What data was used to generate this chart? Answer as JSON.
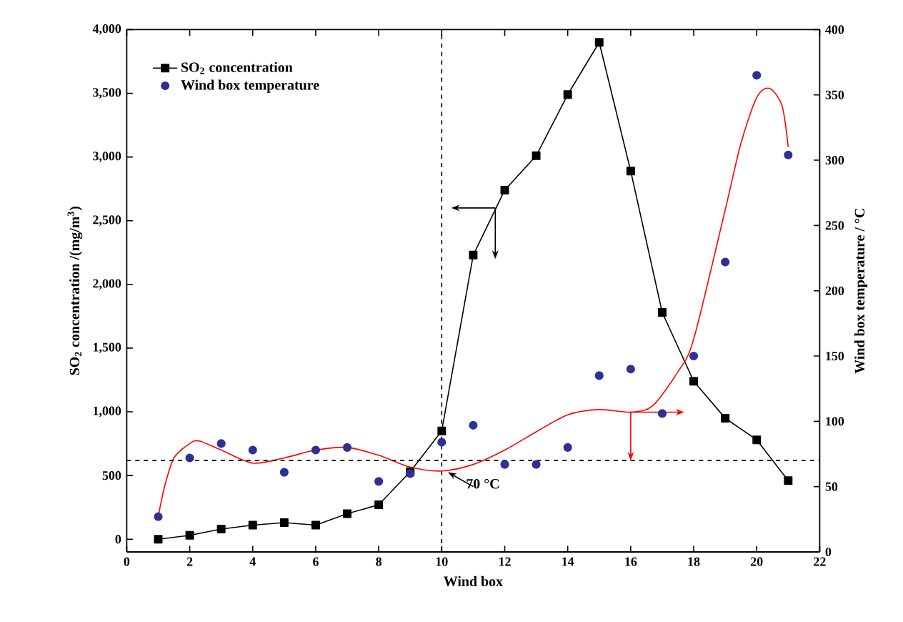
{
  "chart_data": {
    "type": "line",
    "xlabel": "Wind box",
    "ylabel": "SO$_{2}$ concentration /(mg/m$^{3}$)",
    "y2label": "Wind box temperature / °C",
    "xlim": [
      0,
      22
    ],
    "xticks": [
      0,
      2,
      4,
      6,
      8,
      10,
      12,
      14,
      16,
      18,
      20,
      22
    ],
    "ylim": [
      -100,
      4000
    ],
    "yticks": [
      0,
      500,
      {
        "value": 1000,
        "label": "1,000"
      },
      {
        "value": 1500,
        "label": "1,500"
      },
      {
        "value": 2000,
        "label": "2,000"
      },
      {
        "value": 2500,
        "label": "2,500"
      },
      {
        "value": 3000,
        "label": "3,000"
      },
      {
        "value": 3500,
        "label": "3,500"
      },
      {
        "value": 4000,
        "label": "4,000"
      }
    ],
    "y2lim": [
      0,
      400
    ],
    "y2ticks": [
      0,
      50,
      100,
      150,
      200,
      250,
      300,
      350,
      400
    ],
    "legend": "top left",
    "grid": false,
    "series": [
      {
        "name": "SO$_{2}$ concentration",
        "marker": "square",
        "color": "#000000",
        "x": [
          1,
          2,
          3,
          4,
          5,
          6,
          7,
          8,
          9,
          10,
          11,
          12,
          13,
          14,
          15,
          16,
          17,
          18,
          19,
          20,
          21
        ],
        "values": [
          0,
          30,
          80,
          110,
          130,
          110,
          200,
          270,
          530,
          850,
          2230,
          2740,
          3010,
          3490,
          3900,
          2890,
          1780,
          1240,
          950,
          780,
          460
        ]
      },
      {
        "name": "Wind box temperature",
        "type": "scatter",
        "marker": "circle",
        "axis": "y2",
        "color": "#2e3192",
        "x": [
          1,
          2,
          3,
          4,
          5,
          6,
          7,
          8,
          9,
          10,
          11,
          12,
          13,
          14,
          15,
          16,
          17,
          18,
          19,
          20,
          21
        ],
        "values": [
          27,
          72,
          83,
          78,
          61,
          78,
          80,
          54,
          60,
          84,
          97,
          67,
          67,
          80,
          135,
          140,
          106,
          150,
          222,
          365,
          304
        ]
      },
      {
        "marker": "none",
        "axis": "y2",
        "color": "#ff0000",
        "x": [
          1,
          1.2,
          1.5,
          2,
          2.3,
          3,
          4,
          5,
          6,
          7,
          8,
          9,
          10,
          11,
          12,
          13,
          14,
          15,
          16,
          16.7,
          17.5,
          18,
          19,
          19.5,
          20,
          20.4,
          20.8,
          21
        ],
        "values": [
          27,
          50,
          72,
          83,
          85,
          78,
          68,
          72,
          78,
          80,
          74,
          65,
          62,
          67,
          78,
          92,
          105,
          109,
          107,
          112,
          138,
          163,
          262,
          313,
          348,
          355,
          342,
          310
        ]
      }
    ],
    "ref_lines": [
      {
        "axis": "y2",
        "value": 70,
        "label": "70 °C",
        "line_style": "dashed",
        "color": "#000000"
      },
      {
        "axis": "x",
        "value": 10,
        "line_style": "dashed",
        "color": "#000000"
      }
    ]
  }
}
